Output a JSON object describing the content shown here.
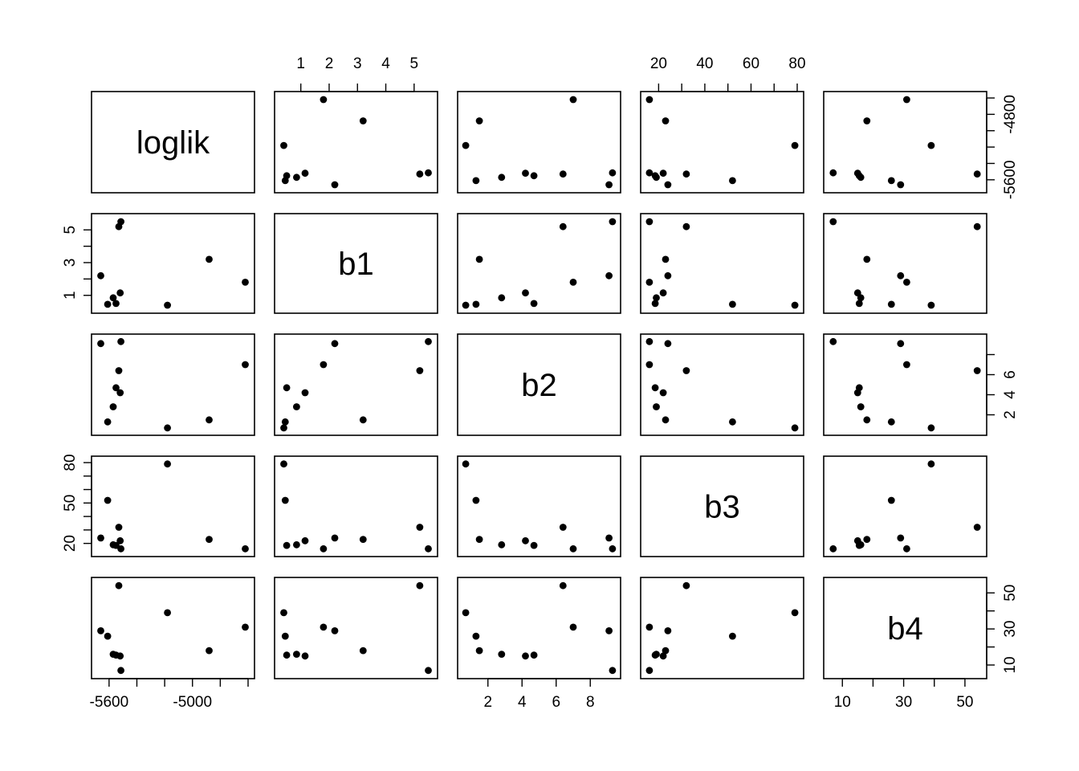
{
  "chart_data": {
    "type": "scatter",
    "title": "",
    "variables": [
      {
        "name": "loglik",
        "lim": [
          -5680,
          -4600
        ],
        "ticks": [
          -5600,
          -5400,
          -5200,
          -5000,
          -4800,
          -4600
        ],
        "tick_labels": [
          "-5600",
          "",
          "",
          "-5000",
          "",
          ""
        ],
        "tick_labels_right": [
          "-5600",
          "",
          "",
          "",
          "-4800",
          ""
        ]
      },
      {
        "name": "b1",
        "lim": [
          0.3,
          5.6
        ],
        "ticks": [
          1,
          2,
          3,
          4,
          5
        ],
        "tick_labels": [
          "1",
          "2",
          "3",
          "4",
          "5"
        ],
        "tick_labels_left": [
          "1",
          "",
          "3",
          "",
          "5"
        ]
      },
      {
        "name": "b2",
        "lim": [
          0.6,
          9.4
        ],
        "ticks": [
          2,
          4,
          6,
          8
        ],
        "tick_labels": [
          "2",
          "4",
          "6",
          "8"
        ],
        "tick_labels_right": [
          "2",
          "4",
          "6",
          ""
        ]
      },
      {
        "name": "b3",
        "lim": [
          15,
          80
        ],
        "ticks": [
          20,
          30,
          40,
          50,
          60,
          70,
          80
        ],
        "tick_labels": [
          "20",
          "",
          "40",
          "",
          "60",
          "",
          "80"
        ],
        "tick_labels_left": [
          "20",
          "",
          "",
          "50",
          "",
          "",
          "80"
        ]
      },
      {
        "name": "b4",
        "lim": [
          6,
          55
        ],
        "ticks": [
          10,
          20,
          30,
          40,
          50
        ],
        "tick_labels": [
          "10",
          "",
          "30",
          "",
          "50"
        ],
        "tick_labels_right": [
          "10",
          "",
          "30",
          "",
          "50"
        ]
      }
    ],
    "observations": [
      {
        "loglik": -5660,
        "b1": 2.2,
        "b2": 9.1,
        "b3": 24,
        "b4": 29
      },
      {
        "loglik": -5610,
        "b1": 0.45,
        "b2": 1.3,
        "b3": 52,
        "b4": 26
      },
      {
        "loglik": -5570,
        "b1": 0.85,
        "b2": 2.8,
        "b3": 19,
        "b4": 16
      },
      {
        "loglik": -5550,
        "b1": 0.5,
        "b2": 4.7,
        "b3": 18.5,
        "b4": 15.5
      },
      {
        "loglik": -5530,
        "b1": 5.2,
        "b2": 6.4,
        "b3": 32,
        "b4": 54
      },
      {
        "loglik": -5520,
        "b1": 1.15,
        "b2": 4.2,
        "b3": 22,
        "b4": 15
      },
      {
        "loglik": -5515,
        "b1": 5.5,
        "b2": 9.3,
        "b3": 16,
        "b4": 7
      },
      {
        "loglik": -5180,
        "b1": 0.4,
        "b2": 0.7,
        "b3": 79,
        "b4": 39
      },
      {
        "loglik": -4880,
        "b1": 3.2,
        "b2": 1.5,
        "b3": 23,
        "b4": 18
      },
      {
        "loglik": -4620,
        "b1": 1.8,
        "b2": 7.0,
        "b3": 16,
        "b4": 31
      }
    ],
    "grid": false,
    "legend": "none"
  }
}
